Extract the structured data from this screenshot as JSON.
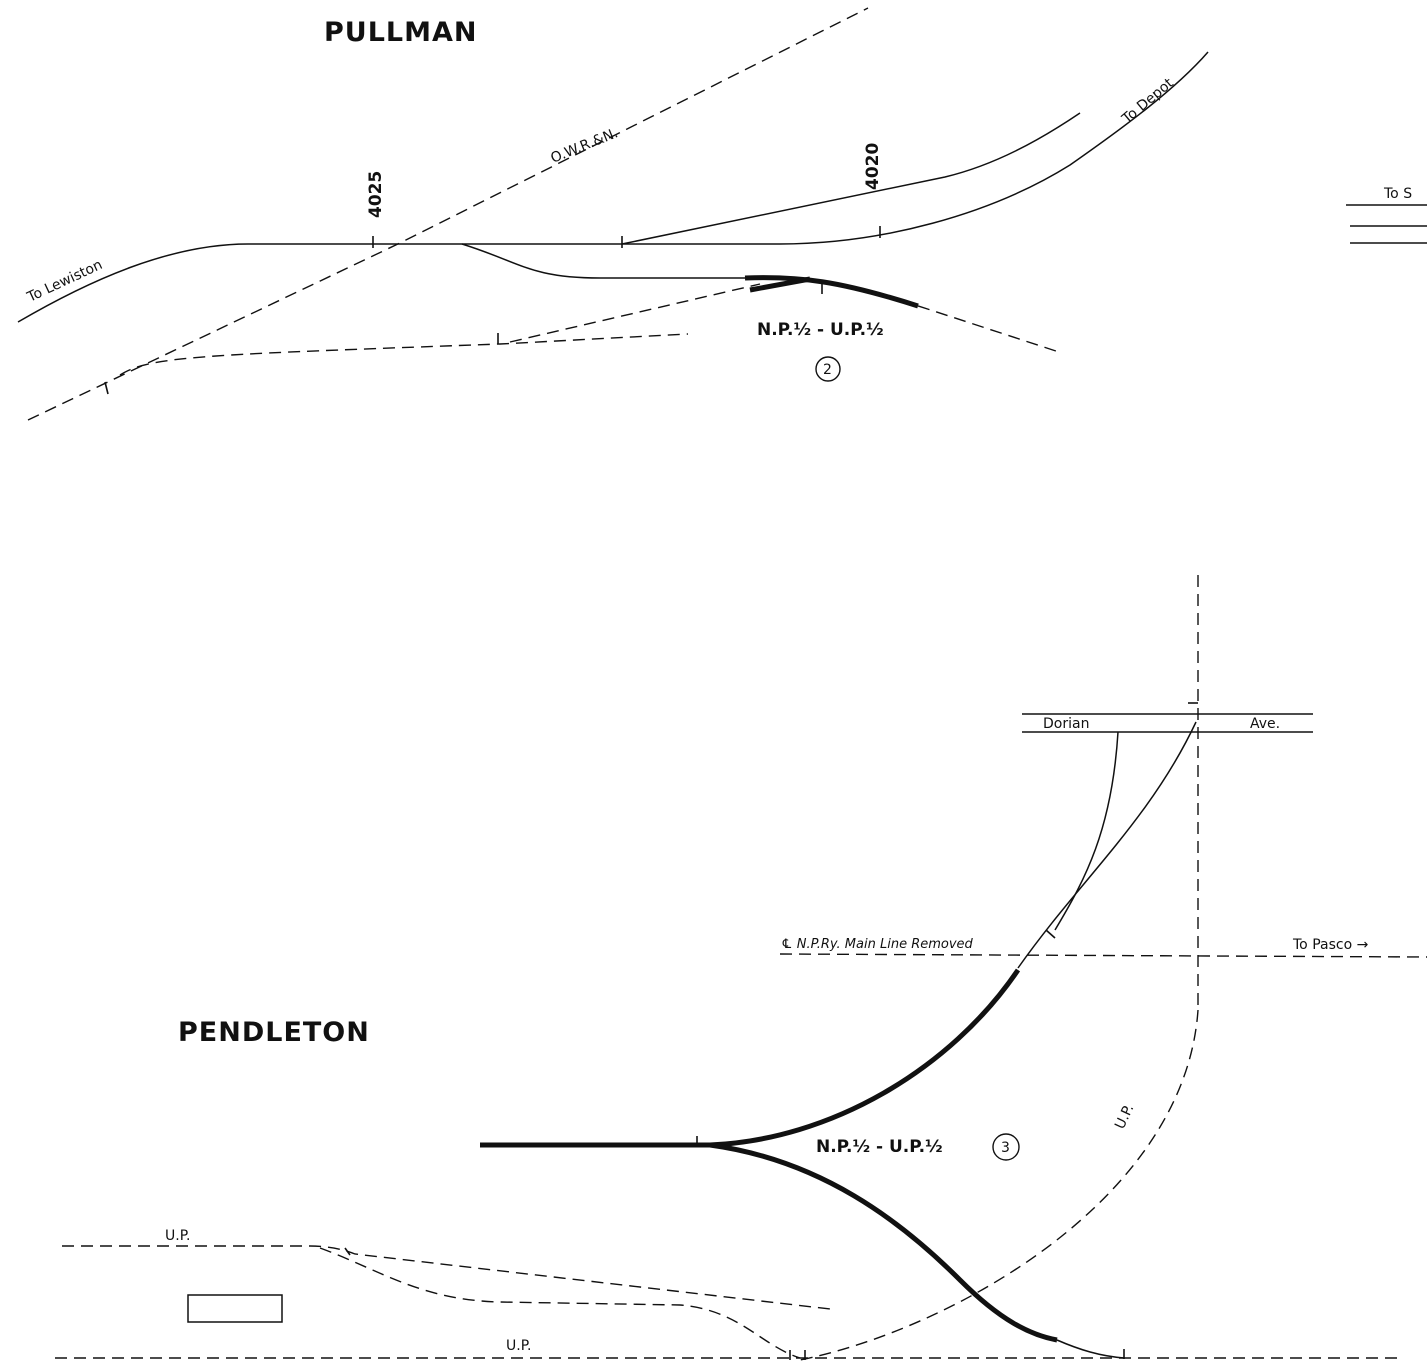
{
  "pullman": {
    "title": "PULLMAN",
    "to_lewiston": "To Lewiston",
    "owrn": "O.W.R.&N.",
    "mp_4025": "4025",
    "mp_4020": "4020",
    "to_depot": "To Depot",
    "to_s": "To S",
    "ownership": "N.P.½ - U.P.½",
    "circle_num": "2"
  },
  "pendleton": {
    "title": "PENDLETON",
    "street_left": "Dorian",
    "street_right": "Ave.",
    "removed_line": "℄ N.P.Ry. Main Line Removed",
    "to_pasco": "To Pasco →",
    "up_curve": "U.P.",
    "up_top": "U.P.",
    "up_bottom": "U.P.",
    "ownership": "N.P.½ - U.P.½",
    "circle_num": "3"
  }
}
